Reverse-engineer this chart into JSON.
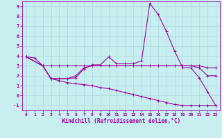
{
  "background_color": "#c8eef0",
  "grid_color": "#b0dde0",
  "line_color": "#990099",
  "xlim": [
    -0.5,
    23.5
  ],
  "ylim": [
    -1.5,
    9.5
  ],
  "xticks": [
    0,
    1,
    2,
    3,
    4,
    5,
    6,
    7,
    8,
    9,
    10,
    11,
    12,
    13,
    14,
    15,
    16,
    17,
    18,
    19,
    20,
    21,
    22,
    23
  ],
  "yticks": [
    -1,
    0,
    1,
    2,
    3,
    4,
    5,
    6,
    7,
    8,
    9
  ],
  "xlabel": "Windchill (Refroidissement éolien,°C)",
  "series": [
    {
      "x": [
        0,
        1,
        2,
        3,
        4,
        5,
        6,
        7,
        8,
        9,
        10,
        11,
        12,
        13,
        14,
        15,
        16,
        17,
        18,
        19,
        20,
        21,
        22,
        23
      ],
      "y": [
        3.9,
        3.8,
        3.0,
        1.7,
        1.7,
        1.7,
        1.8,
        2.7,
        3.1,
        3.1,
        3.9,
        3.2,
        3.2,
        3.2,
        3.5,
        9.3,
        8.2,
        6.5,
        4.5,
        2.8,
        2.8,
        1.8,
        0.4,
        -1.0
      ]
    },
    {
      "x": [
        0,
        2,
        3,
        4,
        5,
        6,
        7,
        8,
        9,
        10,
        11,
        12,
        13,
        14,
        15,
        16,
        17,
        18,
        19,
        20,
        21,
        22,
        23
      ],
      "y": [
        3.9,
        3.0,
        3.0,
        3.0,
        3.0,
        3.0,
        3.0,
        3.0,
        3.0,
        3.0,
        3.0,
        3.0,
        3.0,
        3.0,
        3.0,
        3.0,
        3.0,
        3.0,
        3.0,
        3.0,
        3.0,
        2.8,
        2.8
      ]
    },
    {
      "x": [
        0,
        2,
        3,
        4,
        5,
        6,
        7,
        8,
        9,
        10,
        11,
        12,
        13,
        14,
        15,
        16,
        17,
        18,
        19,
        20,
        21,
        22,
        23
      ],
      "y": [
        3.9,
        3.0,
        1.7,
        1.7,
        1.7,
        2.0,
        2.8,
        3.0,
        3.0,
        3.0,
        3.0,
        3.0,
        3.0,
        3.0,
        3.0,
        3.0,
        3.0,
        3.0,
        3.0,
        3.0,
        2.8,
        2.0,
        2.0
      ]
    },
    {
      "x": [
        0,
        2,
        3,
        4,
        5,
        6,
        7,
        8,
        9,
        10,
        11,
        12,
        13,
        14,
        15,
        16,
        17,
        18,
        19,
        20,
        21,
        22,
        23
      ],
      "y": [
        3.9,
        3.0,
        1.7,
        1.5,
        1.3,
        1.2,
        1.1,
        1.0,
        0.8,
        0.7,
        0.5,
        0.3,
        0.1,
        -0.1,
        -0.3,
        -0.5,
        -0.7,
        -0.9,
        -1.0,
        -1.0,
        -1.0,
        -1.0,
        -1.0
      ]
    }
  ]
}
